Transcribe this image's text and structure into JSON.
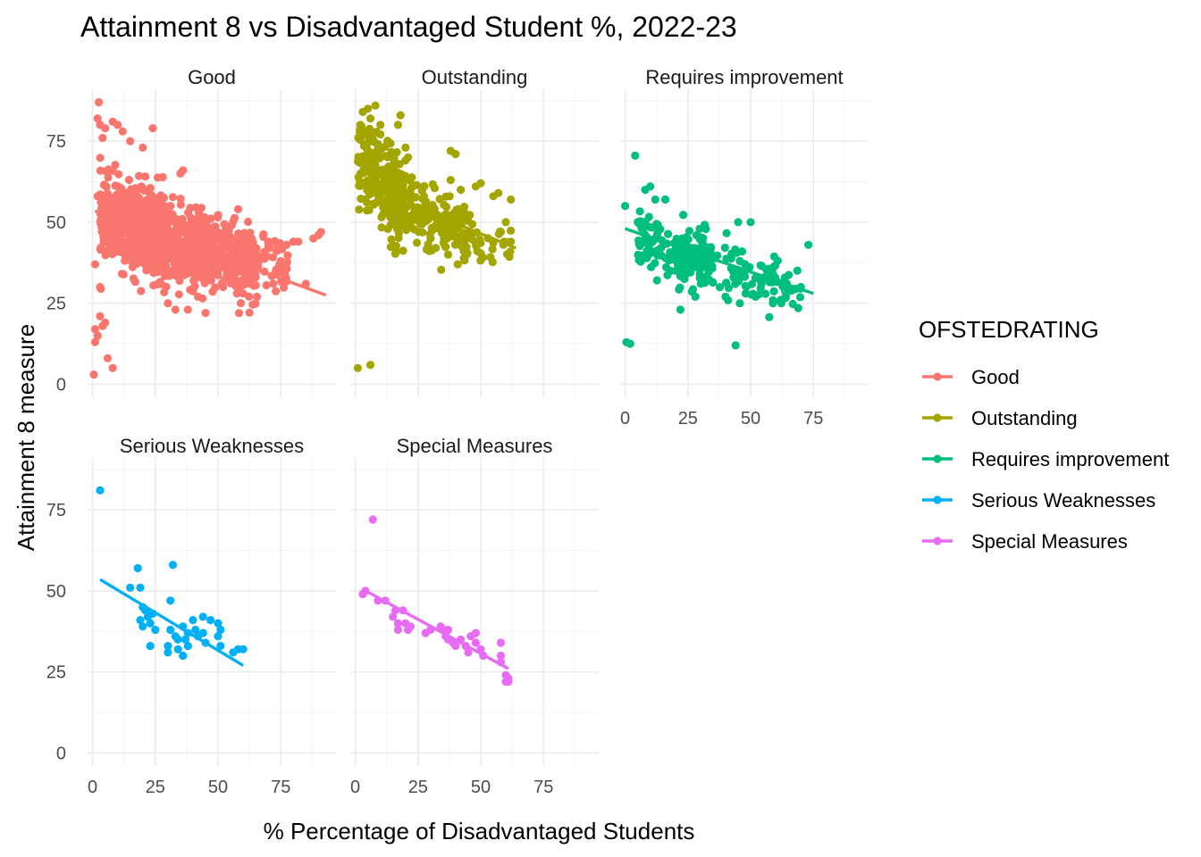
{
  "chart_data": {
    "type": "scatter",
    "title": "Attainment 8 vs Disadvantaged Student %, 2022-23",
    "xlabel": "% Percentage of Disadvantaged Students",
    "ylabel": "Attainment 8 measure",
    "xlim": [
      -2,
      97
    ],
    "ylim": [
      -4,
      91
    ],
    "x_ticks": [
      0,
      25,
      50,
      75
    ],
    "y_ticks": [
      0,
      25,
      50,
      75
    ],
    "grid": true,
    "legend": {
      "title": "OFSTEDRATING",
      "position": "right"
    },
    "panels": [
      {
        "name": "Good",
        "color": "#F8766D",
        "spread": 7.5,
        "trend": [
          [
            1,
            53.5
          ],
          [
            93,
            27.5
          ]
        ],
        "clusters": [
          {
            "n": 420,
            "xmin": 3,
            "xmax": 30,
            "slope": -0.28,
            "intercept": 53,
            "sd": 6.5
          },
          {
            "n": 420,
            "xmin": 15,
            "xmax": 48,
            "slope": -0.25,
            "intercept": 52,
            "sd": 5.5
          },
          {
            "n": 260,
            "xmin": 40,
            "xmax": 66,
            "slope": -0.28,
            "intercept": 54,
            "sd": 5.5
          },
          {
            "n": 60,
            "xmin": 60,
            "xmax": 78,
            "slope": -0.25,
            "intercept": 56,
            "sd": 4.5
          }
        ],
        "points": [
          [
            2.5,
            87
          ],
          [
            2,
            82
          ],
          [
            3,
            80
          ],
          [
            4,
            76
          ],
          [
            5,
            79
          ],
          [
            8,
            81
          ],
          [
            10,
            80
          ],
          [
            12,
            78
          ],
          [
            15,
            75
          ],
          [
            20,
            73
          ],
          [
            24,
            79
          ],
          [
            2,
            58
          ],
          [
            1,
            37
          ],
          [
            3,
            30
          ],
          [
            3,
            21
          ],
          [
            5,
            19
          ],
          [
            4,
            18
          ],
          [
            1,
            17
          ],
          [
            2,
            15
          ],
          [
            1,
            13
          ],
          [
            6,
            8
          ],
          [
            8,
            5
          ],
          [
            0.5,
            3
          ],
          [
            31,
            55
          ],
          [
            35,
            65
          ],
          [
            36,
            66
          ],
          [
            30,
            25
          ],
          [
            33,
            23
          ],
          [
            38,
            23
          ],
          [
            45,
            22
          ],
          [
            42,
            27
          ],
          [
            52,
            30
          ],
          [
            60,
            28
          ],
          [
            65,
            33
          ],
          [
            72,
            31
          ],
          [
            75,
            38
          ],
          [
            80,
            44
          ],
          [
            82,
            44
          ],
          [
            88,
            45
          ],
          [
            90,
            46
          ],
          [
            91,
            47
          ],
          [
            85,
            31
          ],
          [
            70,
            44
          ],
          [
            68,
            46
          ],
          [
            58,
            54
          ]
        ]
      },
      {
        "name": "Outstanding",
        "color": "#A3A500",
        "spread": 5,
        "trend": [
          [
            1,
            62
          ],
          [
            64,
            42
          ]
        ],
        "clusters": [
          {
            "n": 230,
            "xmin": 1,
            "xmax": 20,
            "slope": -0.75,
            "intercept": 70,
            "sd": 6.5
          },
          {
            "n": 170,
            "xmin": 15,
            "xmax": 45,
            "slope": -0.38,
            "intercept": 63,
            "sd": 5
          },
          {
            "n": 40,
            "xmin": 40,
            "xmax": 62,
            "slope": -0.3,
            "intercept": 58,
            "sd": 4
          }
        ],
        "points": [
          [
            3,
            84
          ],
          [
            5,
            85
          ],
          [
            8,
            86
          ],
          [
            2,
            80
          ],
          [
            4,
            78
          ],
          [
            6,
            82
          ],
          [
            10,
            80
          ],
          [
            18,
            83
          ],
          [
            17,
            80
          ],
          [
            20,
            73
          ],
          [
            21,
            70
          ],
          [
            38,
            72
          ],
          [
            40,
            71
          ],
          [
            42,
            60
          ],
          [
            38,
            63
          ],
          [
            48,
            61
          ],
          [
            50,
            62
          ],
          [
            55,
            58
          ],
          [
            57,
            59
          ],
          [
            62,
            57
          ],
          [
            60,
            50
          ],
          [
            58,
            47
          ],
          [
            59,
            43
          ],
          [
            62,
            44
          ],
          [
            37,
            40
          ],
          [
            30,
            45
          ],
          [
            1,
            5
          ],
          [
            6,
            6
          ]
        ]
      },
      {
        "name": "Requires improvement",
        "color": "#00BF7D",
        "spread": 4,
        "trend": [
          [
            0,
            48
          ],
          [
            75,
            28
          ]
        ],
        "clusters": [
          {
            "n": 130,
            "xmin": 5,
            "xmax": 35,
            "slope": -0.3,
            "intercept": 47,
            "sd": 4.5
          },
          {
            "n": 130,
            "xmin": 20,
            "xmax": 60,
            "slope": -0.25,
            "intercept": 45.5,
            "sd": 4.5
          },
          {
            "n": 25,
            "xmin": 55,
            "xmax": 70,
            "slope": -0.25,
            "intercept": 45.5,
            "sd": 4
          }
        ],
        "points": [
          [
            4,
            70.5
          ],
          [
            0,
            55
          ],
          [
            8,
            60
          ],
          [
            10,
            61
          ],
          [
            12,
            57
          ],
          [
            16,
            57
          ],
          [
            5,
            50
          ],
          [
            45,
            50
          ],
          [
            50,
            50
          ],
          [
            73,
            43
          ],
          [
            70,
            30
          ],
          [
            22,
            23
          ],
          [
            44,
            12
          ],
          [
            0.5,
            13
          ],
          [
            2,
            12.5
          ],
          [
            28,
            27
          ],
          [
            40,
            27
          ],
          [
            52,
            27
          ],
          [
            48,
            28
          ],
          [
            64,
            27
          ]
        ]
      },
      {
        "name": "Serious Weaknesses",
        "color": "#00B0F6",
        "spread": 2.5,
        "trend": [
          [
            3,
            53.5
          ],
          [
            60,
            27
          ]
        ],
        "clusters": [],
        "points": [
          [
            3,
            81
          ],
          [
            15,
            51
          ],
          [
            18,
            57
          ],
          [
            19,
            51
          ],
          [
            20,
            45
          ],
          [
            21,
            44
          ],
          [
            22,
            42
          ],
          [
            19,
            41
          ],
          [
            20,
            39
          ],
          [
            23,
            40
          ],
          [
            24,
            43
          ],
          [
            23,
            33
          ],
          [
            25,
            38
          ],
          [
            30,
            31
          ],
          [
            30,
            33
          ],
          [
            31,
            47
          ],
          [
            32,
            58
          ],
          [
            31,
            38
          ],
          [
            33,
            36
          ],
          [
            34,
            35
          ],
          [
            34,
            32
          ],
          [
            36,
            39
          ],
          [
            36,
            30
          ],
          [
            37,
            35
          ],
          [
            38,
            37
          ],
          [
            38,
            33
          ],
          [
            40,
            41
          ],
          [
            41,
            38
          ],
          [
            42,
            36
          ],
          [
            44,
            37
          ],
          [
            44,
            42
          ],
          [
            45,
            34
          ],
          [
            47,
            41
          ],
          [
            50,
            40
          ],
          [
            50,
            36
          ],
          [
            51,
            38
          ],
          [
            51,
            33
          ],
          [
            56,
            31
          ],
          [
            58,
            32
          ],
          [
            60,
            32
          ]
        ]
      },
      {
        "name": "Special Measures",
        "color": "#E76BF3",
        "spread": 2.5,
        "trend": [
          [
            3,
            50.5
          ],
          [
            61,
            26
          ]
        ],
        "clusters": [],
        "points": [
          [
            3,
            49
          ],
          [
            4,
            50
          ],
          [
            7,
            72
          ],
          [
            9,
            47
          ],
          [
            12,
            47
          ],
          [
            15,
            42
          ],
          [
            16,
            44
          ],
          [
            17,
            40
          ],
          [
            17,
            38
          ],
          [
            19,
            44
          ],
          [
            20,
            40
          ],
          [
            21,
            38
          ],
          [
            22,
            39
          ],
          [
            28,
            37
          ],
          [
            30,
            38
          ],
          [
            34,
            39
          ],
          [
            35,
            38
          ],
          [
            36,
            36
          ],
          [
            37,
            38
          ],
          [
            37,
            35
          ],
          [
            39,
            34
          ],
          [
            40,
            33
          ],
          [
            42,
            35
          ],
          [
            44,
            33
          ],
          [
            45,
            31
          ],
          [
            46,
            36
          ],
          [
            48,
            37
          ],
          [
            48,
            34
          ],
          [
            50,
            32
          ],
          [
            51,
            30
          ],
          [
            58,
            34
          ],
          [
            58,
            30
          ],
          [
            58,
            28
          ],
          [
            60,
            24
          ],
          [
            60,
            22
          ],
          [
            61,
            22
          ],
          [
            61,
            23
          ]
        ]
      }
    ]
  }
}
